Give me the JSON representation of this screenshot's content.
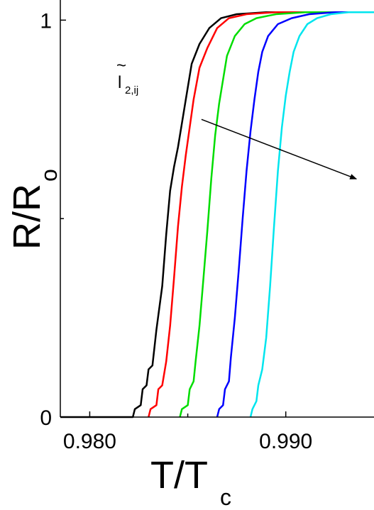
{
  "chart_data": {
    "type": "line",
    "xlabel": {
      "main": "T/T",
      "sub": "c"
    },
    "ylabel": {
      "main": "R/R",
      "sub": "o"
    },
    "xlim": [
      0.9785,
      0.9945
    ],
    "ylim": [
      0,
      1.04
    ],
    "x_ticks": [
      {
        "value": 0.98,
        "label": "0.980"
      },
      {
        "value": 0.99,
        "label": "0.990"
      }
    ],
    "y_ticks": [
      {
        "value": 0,
        "label": "0"
      },
      {
        "value": 1,
        "label": "1"
      }
    ],
    "annotation": {
      "tilde": "~",
      "symbol": "l",
      "subscript": "2,ij",
      "arrow": {
        "from": [
          0.9857,
          0.75
        ],
        "to": [
          0.9936,
          0.6
        ]
      }
    },
    "series": [
      {
        "color": "#000000",
        "x": [
          0.9785,
          0.9822,
          0.9823,
          0.9826,
          0.9827,
          0.9829,
          0.983,
          0.9832,
          0.9834,
          0.9837,
          0.9839,
          0.9841,
          0.9843,
          0.9845,
          0.9847,
          0.9849,
          0.9852,
          0.9856,
          0.9861,
          0.9867,
          0.9875,
          0.989,
          0.9945
        ],
        "y": [
          0.0,
          0.0,
          0.02,
          0.03,
          0.07,
          0.08,
          0.12,
          0.13,
          0.22,
          0.33,
          0.46,
          0.57,
          0.63,
          0.68,
          0.74,
          0.8,
          0.89,
          0.94,
          0.98,
          1.005,
          1.015,
          1.02,
          1.02
        ]
      },
      {
        "color": "#ff0000",
        "x": [
          0.983,
          0.9831,
          0.9834,
          0.9835,
          0.9837,
          0.9839,
          0.9841,
          0.9843,
          0.9845,
          0.9847,
          0.9849,
          0.9851,
          0.9853,
          0.9856,
          0.986,
          0.9865,
          0.9871,
          0.988,
          0.9895,
          0.9945
        ],
        "y": [
          0.0,
          0.02,
          0.03,
          0.07,
          0.08,
          0.14,
          0.23,
          0.35,
          0.48,
          0.58,
          0.66,
          0.73,
          0.8,
          0.88,
          0.93,
          0.98,
          1.005,
          1.015,
          1.02,
          1.02
        ]
      },
      {
        "color": "#00dd00",
        "x": [
          0.9846,
          0.9847,
          0.985,
          0.9851,
          0.9853,
          0.9854,
          0.9856,
          0.9858,
          0.986,
          0.9862,
          0.9864,
          0.9866,
          0.9868,
          0.987,
          0.9874,
          0.9879,
          0.9885,
          0.9895,
          0.991,
          0.9945
        ],
        "y": [
          0.0,
          0.02,
          0.03,
          0.07,
          0.09,
          0.14,
          0.23,
          0.35,
          0.47,
          0.6,
          0.71,
          0.79,
          0.85,
          0.91,
          0.96,
          0.99,
          1.005,
          1.015,
          1.02,
          1.02
        ]
      },
      {
        "color": "#0000ff",
        "x": [
          0.9865,
          0.9866,
          0.9868,
          0.9869,
          0.9871,
          0.9872,
          0.9874,
          0.9876,
          0.9878,
          0.988,
          0.9882,
          0.9884,
          0.9886,
          0.9888,
          0.9891,
          0.9896,
          0.9903,
          0.9912,
          0.9925,
          0.9945
        ],
        "y": [
          0.0,
          0.02,
          0.03,
          0.07,
          0.09,
          0.15,
          0.25,
          0.37,
          0.5,
          0.62,
          0.72,
          0.8,
          0.87,
          0.92,
          0.96,
          0.99,
          1.005,
          1.015,
          1.02,
          1.02
        ]
      },
      {
        "color": "#00e5ee",
        "x": [
          0.9882,
          0.9883,
          0.9885,
          0.9886,
          0.9888,
          0.989,
          0.9892,
          0.9894,
          0.9896,
          0.9898,
          0.99,
          0.9902,
          0.9904,
          0.9907,
          0.9911,
          0.9916,
          0.9923,
          0.9932,
          0.9945
        ],
        "y": [
          0.0,
          0.02,
          0.04,
          0.08,
          0.12,
          0.2,
          0.33,
          0.48,
          0.62,
          0.73,
          0.81,
          0.87,
          0.92,
          0.96,
          0.99,
          1.005,
          1.015,
          1.02,
          1.02
        ]
      }
    ]
  }
}
